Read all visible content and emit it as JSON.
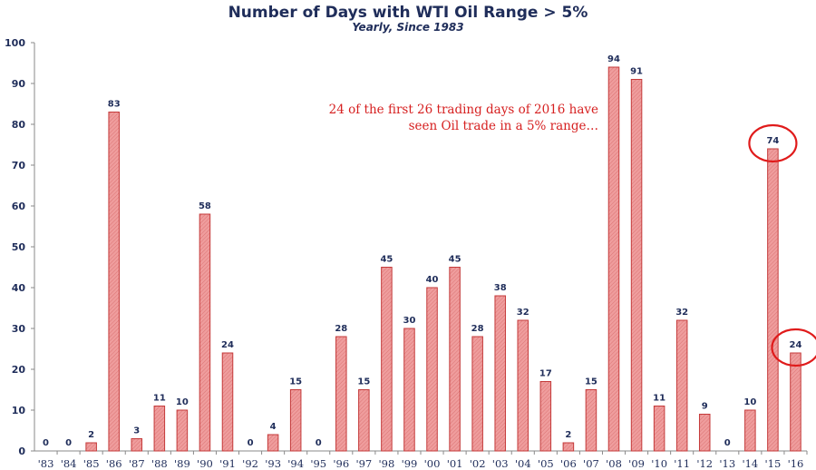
{
  "annotation": {
    "line1": "24 of the first 26 trading days of 2016 have",
    "line2": "seen Oil trade in a 5% range…"
  },
  "colors": {
    "bar_fill": "#ef9d9d",
    "bar_stroke": "#c43a3a",
    "highlight_circle": "#e01b1b",
    "text": "#1f2d5a",
    "annotation": "#d62020"
  },
  "chart_data": {
    "type": "bar",
    "title": "Number of Days with WTI Oil Range > 5%",
    "subtitle": "Yearly, Since 1983",
    "categories": [
      "'83",
      "'84",
      "'85",
      "'86",
      "'87",
      "'88",
      "'89",
      "'90",
      "'91",
      "'92",
      "'93",
      "'94",
      "'95",
      "'96",
      "'97",
      "'98",
      "'99",
      "'00",
      "'01",
      "'02",
      "'03",
      "'04",
      "'05",
      "'06",
      "'07",
      "'08",
      "'09",
      "'10",
      "'11",
      "'12",
      "'13",
      "'14",
      "'15",
      "'16"
    ],
    "values": [
      0,
      0,
      2,
      83,
      3,
      11,
      10,
      58,
      24,
      0,
      4,
      15,
      0,
      28,
      15,
      45,
      30,
      40,
      45,
      28,
      38,
      32,
      17,
      2,
      15,
      94,
      91,
      11,
      32,
      9,
      0,
      10,
      74,
      24
    ],
    "yticks": [
      0,
      10,
      20,
      30,
      40,
      50,
      60,
      70,
      80,
      90,
      100
    ],
    "ylim": [
      0,
      100
    ],
    "xlabel": "",
    "ylabel": "",
    "grid": false,
    "highlighted_categories": [
      "'15",
      "'16"
    ]
  }
}
